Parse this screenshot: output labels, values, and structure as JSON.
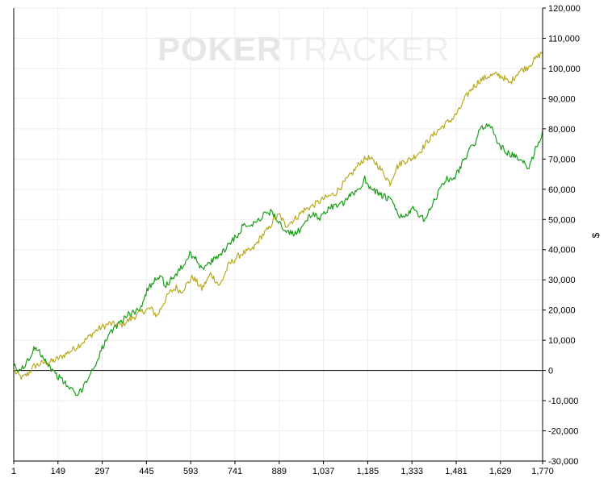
{
  "watermark": {
    "part1": "POKER",
    "part2": "TRACKER"
  },
  "chart_data": {
    "type": "line",
    "ylabel": "$",
    "xlim": [
      1,
      1770
    ],
    "ylim": [
      -30000,
      120000
    ],
    "grid": true,
    "x_ticks": [
      1,
      149,
      297,
      445,
      593,
      741,
      889,
      1037,
      1185,
      1333,
      1481,
      1629,
      1770
    ],
    "x_tick_labels": [
      "1",
      "149",
      "297",
      "445",
      "593",
      "741",
      "889",
      "1,037",
      "1,185",
      "1,333",
      "1,481",
      "1,629",
      "1,770"
    ],
    "y_ticks": [
      -30000,
      -20000,
      -10000,
      0,
      10000,
      20000,
      30000,
      40000,
      50000,
      60000,
      70000,
      80000,
      90000,
      100000,
      110000,
      120000
    ],
    "y_tick_labels": [
      "-30,000",
      "-20,000",
      "-10,000",
      "0",
      "10,000",
      "20,000",
      "30,000",
      "40,000",
      "50,000",
      "60,000",
      "70,000",
      "80,000",
      "90,000",
      "100,000",
      "110,000",
      "120,000"
    ],
    "series": [
      {
        "color": "#b8aa1e",
        "points": [
          [
            1,
            0
          ],
          [
            15,
            -1500
          ],
          [
            30,
            -2500
          ],
          [
            50,
            -1000
          ],
          [
            70,
            1500
          ],
          [
            100,
            2500
          ],
          [
            130,
            3000
          ],
          [
            160,
            4500
          ],
          [
            200,
            7000
          ],
          [
            240,
            10000
          ],
          [
            280,
            13500
          ],
          [
            320,
            15500
          ],
          [
            360,
            15000
          ],
          [
            400,
            17500
          ],
          [
            430,
            19500
          ],
          [
            460,
            20500
          ],
          [
            480,
            18000
          ],
          [
            500,
            22000
          ],
          [
            520,
            25500
          ],
          [
            545,
            27500
          ],
          [
            560,
            26000
          ],
          [
            580,
            28500
          ],
          [
            600,
            31000
          ],
          [
            630,
            27000
          ],
          [
            660,
            32000
          ],
          [
            690,
            28000
          ],
          [
            720,
            35000
          ],
          [
            760,
            38500
          ],
          [
            800,
            40000
          ],
          [
            830,
            44500
          ],
          [
            855,
            47000
          ],
          [
            870,
            50000
          ],
          [
            890,
            51500
          ],
          [
            910,
            48000
          ],
          [
            940,
            50000
          ],
          [
            970,
            53000
          ],
          [
            1000,
            54500
          ],
          [
            1040,
            57000
          ],
          [
            1075,
            58500
          ],
          [
            1105,
            62000
          ],
          [
            1135,
            65500
          ],
          [
            1160,
            69000
          ],
          [
            1185,
            70500
          ],
          [
            1215,
            68500
          ],
          [
            1240,
            65000
          ],
          [
            1260,
            62000
          ],
          [
            1280,
            67000
          ],
          [
            1300,
            69000
          ],
          [
            1330,
            70000
          ],
          [
            1360,
            72500
          ],
          [
            1390,
            76500
          ],
          [
            1420,
            79500
          ],
          [
            1450,
            82000
          ],
          [
            1470,
            83500
          ],
          [
            1490,
            86000
          ],
          [
            1510,
            90000
          ],
          [
            1530,
            93000
          ],
          [
            1560,
            96000
          ],
          [
            1590,
            97500
          ],
          [
            1620,
            98000
          ],
          [
            1640,
            97000
          ],
          [
            1660,
            95000
          ],
          [
            1690,
            99000
          ],
          [
            1720,
            100500
          ],
          [
            1745,
            103000
          ],
          [
            1770,
            105500
          ]
        ]
      },
      {
        "color": "#1a9e1a",
        "points": [
          [
            1,
            1500
          ],
          [
            10,
            500
          ],
          [
            20,
            -500
          ],
          [
            30,
            1000
          ],
          [
            40,
            2000
          ],
          [
            55,
            4000
          ],
          [
            65,
            6500
          ],
          [
            75,
            8000
          ],
          [
            90,
            6000
          ],
          [
            110,
            3000
          ],
          [
            130,
            0
          ],
          [
            150,
            -2000
          ],
          [
            170,
            -4000
          ],
          [
            195,
            -6500
          ],
          [
            215,
            -8500
          ],
          [
            235,
            -5000
          ],
          [
            255,
            -1500
          ],
          [
            275,
            2000
          ],
          [
            290,
            6000
          ],
          [
            310,
            10000
          ],
          [
            335,
            13500
          ],
          [
            360,
            16500
          ],
          [
            385,
            18500
          ],
          [
            410,
            19500
          ],
          [
            430,
            22000
          ],
          [
            450,
            27000
          ],
          [
            470,
            30000
          ],
          [
            490,
            31500
          ],
          [
            510,
            28000
          ],
          [
            530,
            30500
          ],
          [
            550,
            32500
          ],
          [
            570,
            35000
          ],
          [
            590,
            38500
          ],
          [
            610,
            37500
          ],
          [
            630,
            33500
          ],
          [
            650,
            35000
          ],
          [
            670,
            36500
          ],
          [
            690,
            38500
          ],
          [
            710,
            40500
          ],
          [
            730,
            43000
          ],
          [
            750,
            45000
          ],
          [
            765,
            47500
          ],
          [
            790,
            48500
          ],
          [
            810,
            49000
          ],
          [
            830,
            51000
          ],
          [
            850,
            52500
          ],
          [
            870,
            52000
          ],
          [
            880,
            50500
          ],
          [
            890,
            49000
          ],
          [
            905,
            46000
          ],
          [
            920,
            45500
          ],
          [
            940,
            45000
          ],
          [
            960,
            47000
          ],
          [
            980,
            50000
          ],
          [
            1000,
            51500
          ],
          [
            1025,
            50500
          ],
          [
            1050,
            53500
          ],
          [
            1075,
            54500
          ],
          [
            1100,
            55000
          ],
          [
            1120,
            57000
          ],
          [
            1140,
            59000
          ],
          [
            1160,
            60500
          ],
          [
            1175,
            63500
          ],
          [
            1190,
            61000
          ],
          [
            1210,
            59500
          ],
          [
            1230,
            58000
          ],
          [
            1250,
            57000
          ],
          [
            1270,
            55500
          ],
          [
            1285,
            52000
          ],
          [
            1300,
            50500
          ],
          [
            1320,
            52000
          ],
          [
            1340,
            53500
          ],
          [
            1355,
            51000
          ],
          [
            1375,
            50000
          ],
          [
            1390,
            52500
          ],
          [
            1410,
            56500
          ],
          [
            1430,
            61000
          ],
          [
            1450,
            63500
          ],
          [
            1470,
            63000
          ],
          [
            1490,
            66500
          ],
          [
            1510,
            70500
          ],
          [
            1530,
            73500
          ],
          [
            1545,
            75500
          ],
          [
            1560,
            79500
          ],
          [
            1575,
            81000
          ],
          [
            1590,
            82000
          ],
          [
            1600,
            80000
          ],
          [
            1615,
            76500
          ],
          [
            1635,
            73500
          ],
          [
            1655,
            72000
          ],
          [
            1675,
            71000
          ],
          [
            1695,
            69500
          ],
          [
            1715,
            68000
          ],
          [
            1725,
            67000
          ],
          [
            1735,
            70000
          ],
          [
            1750,
            74500
          ],
          [
            1760,
            76000
          ],
          [
            1770,
            79500
          ]
        ]
      }
    ]
  }
}
